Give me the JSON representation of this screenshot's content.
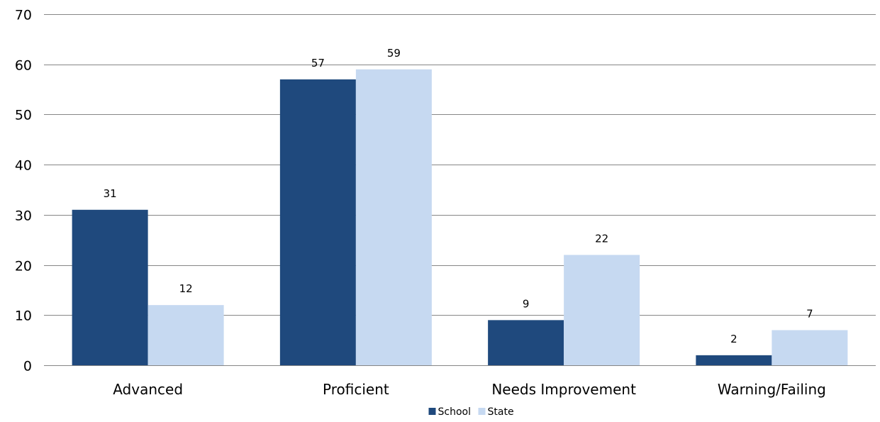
{
  "chart_data": {
    "type": "bar",
    "title": "",
    "xlabel": "",
    "ylabel": "",
    "categories": [
      "Advanced",
      "Proficient",
      "Needs Improvement",
      "Warning/Failing"
    ],
    "series": [
      {
        "name": "School",
        "values": [
          31,
          57,
          9,
          2
        ],
        "color": "#1f497d"
      },
      {
        "name": "State",
        "values": [
          12,
          59,
          22,
          7
        ],
        "color": "#c6d9f1"
      }
    ],
    "ylim": [
      0,
      70
    ],
    "yticks": [
      0,
      10,
      20,
      30,
      40,
      50,
      60,
      70
    ],
    "grid": true,
    "legend_position": "bottom",
    "data_labels": true
  }
}
